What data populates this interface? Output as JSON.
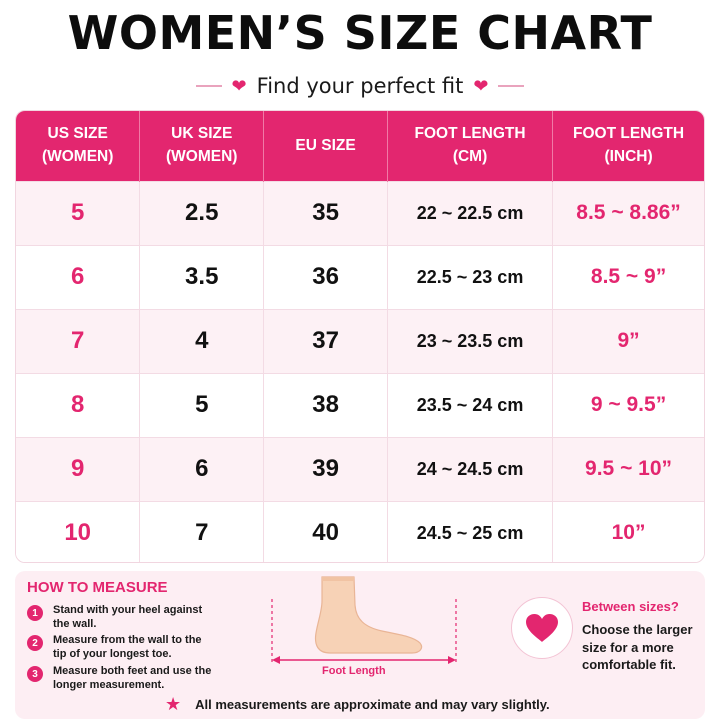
{
  "header": {
    "title": "WOMEN’S SIZE CHART",
    "subtitle": "Find your perfect fit"
  },
  "table": {
    "headers": [
      [
        "US SIZE",
        "(WOMEN)"
      ],
      [
        "UK SIZE",
        "(WOMEN)"
      ],
      [
        "EU SIZE"
      ],
      [
        "FOOT LENGTH",
        "(CM)"
      ],
      [
        "FOOT LENGTH",
        "(INCH)"
      ]
    ],
    "rows": [
      {
        "us": "5",
        "uk": "2.5",
        "eu": "35",
        "cm": "22 ~ 22.5 cm",
        "inch": "8.5 ~ 8.86”"
      },
      {
        "us": "6",
        "uk": "3.5",
        "eu": "36",
        "cm": "22.5 ~ 23 cm",
        "inch": "8.5 ~ 9”"
      },
      {
        "us": "7",
        "uk": "4",
        "eu": "37",
        "cm": "23 ~ 23.5 cm",
        "inch": "9”"
      },
      {
        "us": "8",
        "uk": "5",
        "eu": "38",
        "cm": "23.5 ~ 24 cm",
        "inch": "9 ~ 9.5”"
      },
      {
        "us": "9",
        "uk": "6",
        "eu": "39",
        "cm": "24 ~ 24.5 cm",
        "inch": "9.5 ~ 10”"
      },
      {
        "us": "10",
        "uk": "7",
        "eu": "40",
        "cm": "24.5 ~ 25 cm",
        "inch": "10”"
      }
    ]
  },
  "how_to_measure": {
    "title": "HOW TO MEASURE",
    "steps": [
      {
        "num": "1",
        "text": "Stand with your heel against the wall."
      },
      {
        "num": "2",
        "text": "Measure from the wall to the tip of your longest toe."
      },
      {
        "num": "3",
        "text": "Measure both feet and use the longer measurement."
      }
    ],
    "foot_label": "Foot Length"
  },
  "between_sizes": {
    "title": "Between sizes?",
    "text": "Choose the larger size for a more comfortable fit."
  },
  "note": "All measurements are approximate and may vary slightly.",
  "icons": {
    "subtitle_left": "heart-icon",
    "subtitle_right": "heart-icon",
    "between": "heart-icon",
    "note": "star-icon"
  },
  "colors": {
    "accent": "#e3266f",
    "accent_light": "#fdeef3",
    "row_tint": "#fdf1f5"
  }
}
